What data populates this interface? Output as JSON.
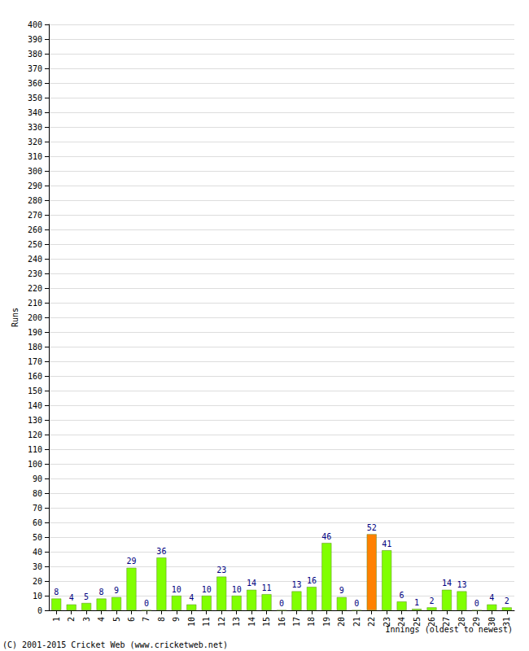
{
  "chart_data": {
    "type": "bar",
    "x_label": "Innings (oldest to newest)",
    "y_label": "Runs",
    "annotations": [
      "(C) 2001-2015 Cricket Web (www.cricketweb.net)"
    ],
    "categories": [
      "1",
      "2",
      "3",
      "4",
      "5",
      "6",
      "7",
      "8",
      "9",
      "10",
      "11",
      "12",
      "13",
      "14",
      "15",
      "16",
      "17",
      "18",
      "19",
      "20",
      "21",
      "22",
      "23",
      "24",
      "25",
      "26",
      "27",
      "28",
      "29",
      "30",
      "31"
    ],
    "values": [
      8,
      4,
      5,
      8,
      9,
      29,
      0,
      36,
      10,
      4,
      10,
      23,
      10,
      14,
      11,
      0,
      13,
      16,
      46,
      9,
      0,
      52,
      41,
      6,
      1,
      2,
      14,
      13,
      0,
      4,
      2
    ],
    "colors": [
      "#80ff00",
      "#80ff00",
      "#80ff00",
      "#80ff00",
      "#80ff00",
      "#80ff00",
      "#80ff00",
      "#80ff00",
      "#80ff00",
      "#80ff00",
      "#80ff00",
      "#80ff00",
      "#80ff00",
      "#80ff00",
      "#80ff00",
      "#80ff00",
      "#80ff00",
      "#80ff00",
      "#80ff00",
      "#80ff00",
      "#80ff00",
      "#ff8000",
      "#80ff00",
      "#80ff00",
      "#80ff00",
      "#80ff00",
      "#80ff00",
      "#80ff00",
      "#80ff00",
      "#80ff00",
      "#80ff00"
    ],
    "ylim": [
      0,
      400
    ],
    "yticks": [
      0,
      10,
      20,
      30,
      40,
      50,
      60,
      70,
      80,
      90,
      100,
      110,
      120,
      130,
      140,
      150,
      160,
      170,
      180,
      190,
      200,
      210,
      220,
      230,
      240,
      250,
      260,
      270,
      280,
      290,
      300,
      310,
      320,
      330,
      340,
      350,
      360,
      370,
      380,
      390,
      400
    ],
    "grid": true,
    "data_labels": true
  }
}
